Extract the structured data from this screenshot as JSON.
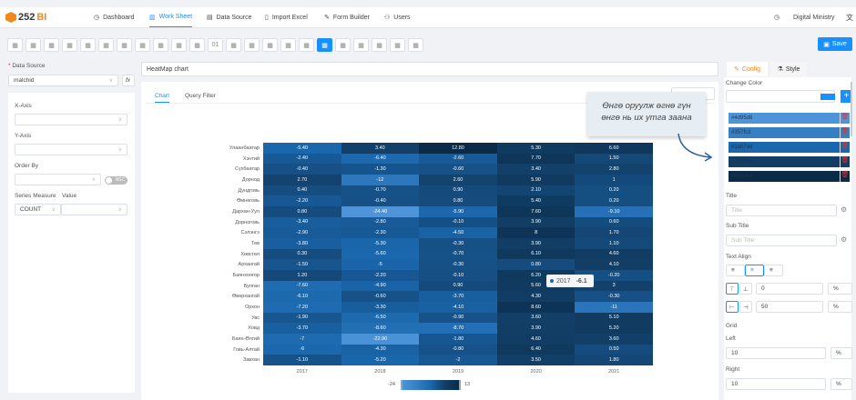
{
  "header": {
    "logo": "252BI",
    "logo_a": "252",
    "logo_b": "BI",
    "nav": [
      "Dashboard",
      "Work Sheet",
      "Data Source",
      "Import Excel",
      "Form Builder",
      "Users"
    ],
    "active": "Work Sheet",
    "user": "Digital Ministry"
  },
  "toolbar": {
    "items": [
      "bar",
      "column",
      "stacked",
      "hbar",
      "grid-bar",
      "scatter",
      "combo",
      "area",
      "area2",
      "pie",
      "gauge",
      "01",
      "table",
      "pivot",
      "treemap",
      "layers",
      "funnel",
      "heatmap",
      "radar",
      "square",
      "sankey",
      "map",
      "export"
    ],
    "save_label": "Save"
  },
  "left": {
    "data_source_label": "Data Source",
    "data_source_value": "malchid",
    "fx": "fx",
    "x_axis": "X-Axis",
    "y_axis": "Y-Axis",
    "order_by": "Order By",
    "asc": "ASC",
    "series_measure": "Series Measure",
    "value": "Value",
    "measure_value": "COUNT"
  },
  "main": {
    "chart_title": "HeatMap chart",
    "tabs": [
      "Chart",
      "Query Filter"
    ],
    "active_tab": "Chart",
    "annotation_line1": "Өнгө оруулж өгнө гүн",
    "annotation_line2": "өнгө нь их утга заана"
  },
  "tooltip": {
    "label": "2017",
    "value": "-6.1"
  },
  "chart_data": {
    "type": "heatmap",
    "x": [
      "2017",
      "2018",
      "2019",
      "2020",
      "2021"
    ],
    "y": [
      "Улаанбаатар",
      "Хэнтий",
      "Сүхбаатар",
      "Дорнод",
      "Дундговь",
      "Өмнөговь",
      "Дархан-Уул",
      "Дорноговь",
      "Сэлэнгэ",
      "Төв",
      "Хөвсгөл",
      "Архангай",
      "Баянхонгор",
      "Булган",
      "Өвөрхангай",
      "Орхон",
      "Увс",
      "Ховд",
      "Баян-Өлгий",
      "Говь-Алтай",
      "Завхан"
    ],
    "values": [
      [
        "-5.40",
        "3.40",
        "12.80",
        "5.30",
        "6.60"
      ],
      [
        "-2.40",
        "-6.40",
        "-2.60",
        "7.70",
        "1.50"
      ],
      [
        "-0.40",
        "-1.30",
        "-0.60",
        "3.40",
        "2.80"
      ],
      [
        "2.70",
        "-12",
        "2.60",
        "5.90",
        "1"
      ],
      [
        "0.40",
        "-0.70",
        "0.90",
        "2.10",
        "0.20"
      ],
      [
        "-2.20",
        "-0.40",
        "0.80",
        "5.40",
        "0.20"
      ],
      [
        "0.80",
        "-24.40",
        "-5.90",
        "7.60",
        "-9.10"
      ],
      [
        "-3.40",
        "-2.80",
        "-0.10",
        "3.90",
        "0.60"
      ],
      [
        "-2.90",
        "-2.30",
        "-4.50",
        "8",
        "1.70"
      ],
      [
        "-3.80",
        "-5.30",
        "-0.30",
        "3.90",
        "1.10"
      ],
      [
        "0.30",
        "-5.60",
        "-0.70",
        "6.10",
        "4.60"
      ],
      [
        "-1.50",
        "-5",
        "-0.30",
        "0.80",
        "4.10"
      ],
      [
        "1.20",
        "-2.20",
        "-0.10",
        "6.20",
        "-0.20"
      ],
      [
        "-7.60",
        "-4.90",
        "0.90",
        "5.60",
        "3"
      ],
      [
        "-6.10",
        "-0.60",
        "-3.70",
        "4.30",
        "-0.30"
      ],
      [
        "-7.20",
        "-3.30",
        "-4.10",
        "8.60",
        "-11"
      ],
      [
        "-1.90",
        "-6.50",
        "-0.90",
        "3.60",
        "5.10"
      ],
      [
        "-3.70",
        "-8.60",
        "-8.70",
        "3.90",
        "5.20"
      ],
      [
        "-7",
        "-22.90",
        "-1.80",
        "4.60",
        "3.60"
      ],
      [
        "-6",
        "-4.30",
        "-0.80",
        "6.40",
        "0.50"
      ],
      [
        "-1.10",
        "-5.20",
        "-2",
        "3.50",
        "1.80"
      ]
    ],
    "visual_map": {
      "min": -24,
      "max": 13,
      "min_label": "-24",
      "max_label": "13"
    }
  },
  "config": {
    "tabs": [
      "Config",
      "Style"
    ],
    "change_color": "Change Color",
    "colors": [
      "#4d95d8",
      "#357fc3",
      "#1a67ad",
      "#123e66",
      "#092b47"
    ],
    "picker_color": "#1890ff",
    "add": "+",
    "title_label": "Title",
    "title_ph": "Title",
    "subtitle_label": "Sub Title",
    "subtitle_ph": "Sub Title",
    "text_align": "Text Align",
    "top_value": "0",
    "left_value": "50",
    "unit": "%",
    "grid": "Grid",
    "grid_left": "Left",
    "grid_left_value": "10",
    "grid_right": "Right",
    "grid_right_value": "10"
  }
}
